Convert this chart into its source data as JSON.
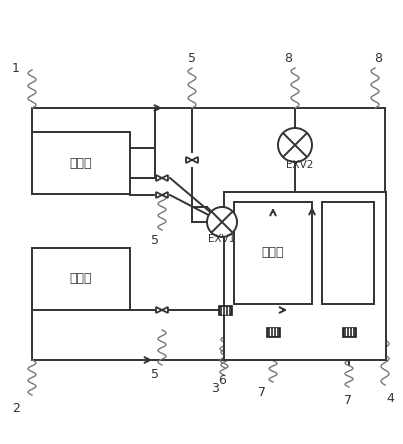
{
  "background_color": "#ffffff",
  "line_color": "#333333",
  "label_1": "1",
  "label_2": "2",
  "label_3": "3",
  "label_4": "4",
  "label_5": "5",
  "label_6": "6",
  "label_7": "7",
  "label_8": "8",
  "text_evaporator": "蒸发器",
  "text_condenser": "冷凝器",
  "text_heat_sink": "散热板",
  "text_exv1": "EXV1",
  "text_exv2": "EXV2"
}
